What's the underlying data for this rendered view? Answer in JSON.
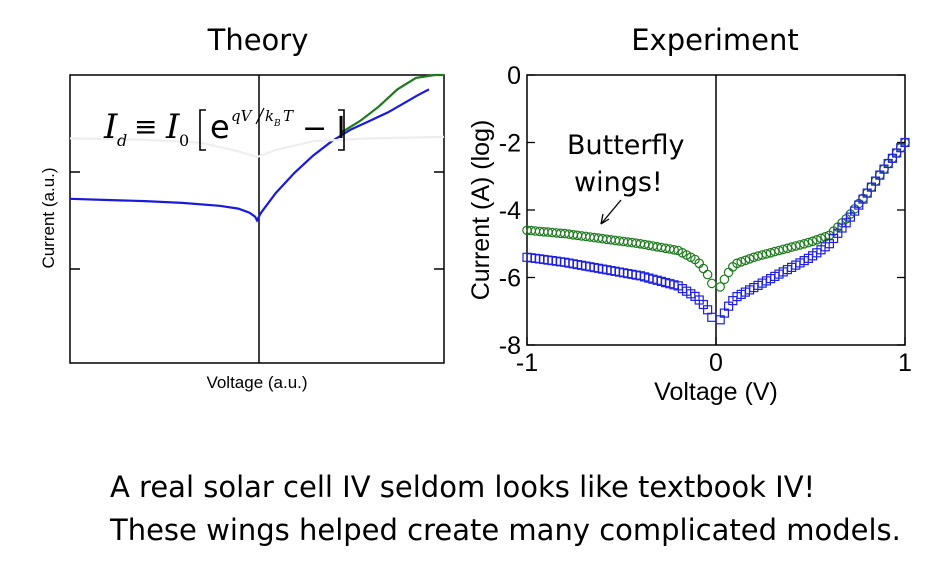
{
  "chart_data": [
    {
      "type": "line",
      "title": "Theory",
      "xlabel": "Voltage (a.u.)",
      "ylabel": "Current (a.u.)",
      "equation": {
        "lhs_main": "I",
        "lhs_sub": "d",
        "equiv": "≡",
        "coef_main": "I",
        "coef_sub": "0",
        "exp_base": "e",
        "exp_num": "qV",
        "exp_den_main": "k",
        "exp_den_sub": "B",
        "exp_den_tail": "T",
        "minus_one": "− I"
      },
      "xlim": [
        -1,
        1
      ],
      "ylim": [
        0,
        1
      ],
      "grid": false,
      "series": [
        {
          "color": "#1a1adc",
          "x": [
            -1,
            -0.8,
            -0.6,
            -0.4,
            -0.2,
            -0.1,
            -0.04,
            -0.01,
            0,
            0.02,
            0.1,
            0.2,
            0.3,
            0.4,
            0.5,
            0.6,
            0.7,
            0.78,
            0.86,
            0.92
          ],
          "y": [
            0.57,
            0.566,
            0.562,
            0.556,
            0.546,
            0.536,
            0.522,
            0.508,
            0.495,
            0.52,
            0.59,
            0.66,
            0.72,
            0.77,
            0.81,
            0.84,
            0.87,
            0.9,
            0.93,
            0.95
          ]
        },
        {
          "color": "#1f7a1f",
          "x": [
            0.45,
            0.55,
            0.65,
            0.75,
            0.85,
            0.95,
            1.0
          ],
          "y": [
            0.8,
            0.84,
            0.89,
            0.95,
            0.99,
            1.005,
            1.01
          ]
        },
        {
          "color": "#eeeeee",
          "x": [
            -1,
            -0.6,
            -0.3,
            -0.1,
            0,
            0.1,
            0.3,
            0.6,
            1
          ],
          "y": [
            0.78,
            0.775,
            0.765,
            0.735,
            0.715,
            0.74,
            0.77,
            0.78,
            0.785
          ]
        }
      ]
    },
    {
      "type": "scatter",
      "title": "Experiment",
      "xlabel": "Voltage (V)",
      "ylabel": "Current (A) (log)",
      "xlim": [
        -1,
        1
      ],
      "ylim": [
        -8,
        0
      ],
      "xticks": [
        "-1",
        "0",
        "1"
      ],
      "yticks": [
        "0",
        "-2",
        "-4",
        "-6",
        "-8"
      ],
      "grid": false,
      "annotation": [
        "Butterfly",
        "wings!"
      ],
      "series": [
        {
          "marker": "circle",
          "color": "#1f7a1f",
          "x": [
            -1,
            -0.8,
            -0.6,
            -0.4,
            -0.2,
            -0.1,
            -0.05,
            -0.02,
            0,
            0.03,
            0.06,
            0.1,
            0.2,
            0.3,
            0.4,
            0.5,
            0.6,
            0.7,
            0.8,
            0.9,
            1
          ],
          "y": [
            -4.6,
            -4.7,
            -4.85,
            -5.0,
            -5.2,
            -5.5,
            -5.85,
            -6.2,
            -6.5,
            -6.2,
            -5.9,
            -5.6,
            -5.4,
            -5.25,
            -5.1,
            -4.95,
            -4.75,
            -4.2,
            -3.5,
            -2.7,
            -2.0
          ]
        },
        {
          "marker": "square",
          "color": "#2020e0",
          "x": [
            -1,
            -0.8,
            -0.6,
            -0.4,
            -0.2,
            -0.1,
            -0.05,
            -0.02,
            0,
            0.03,
            0.06,
            0.1,
            0.2,
            0.3,
            0.4,
            0.5,
            0.6,
            0.7,
            0.8,
            0.9,
            1
          ],
          "y": [
            -5.4,
            -5.55,
            -5.75,
            -5.95,
            -6.25,
            -6.6,
            -6.9,
            -7.2,
            -7.4,
            -7.2,
            -6.9,
            -6.6,
            -6.3,
            -6.0,
            -5.7,
            -5.4,
            -5.0,
            -4.3,
            -3.5,
            -2.7,
            -2.0
          ]
        }
      ]
    }
  ],
  "caption": {
    "line1": "A real solar cell IV seldom looks like textbook IV!",
    "line2": "These wings helped create many complicated models."
  }
}
